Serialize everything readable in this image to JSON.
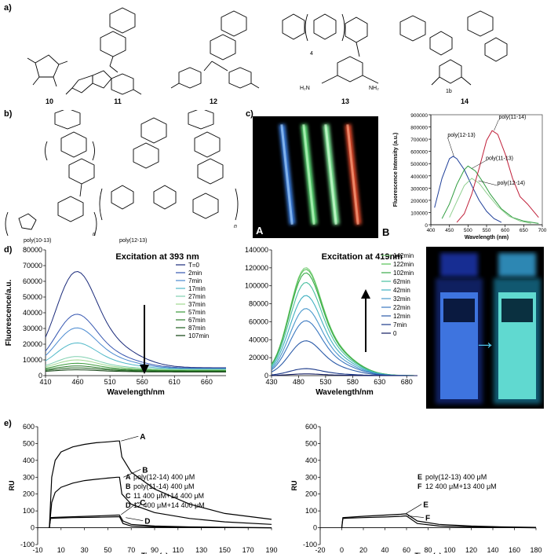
{
  "panels": {
    "a": "a)",
    "b": "b)",
    "c": "c)",
    "d": "d)",
    "e": "e)"
  },
  "compounds": [
    "10",
    "11",
    "12",
    "13",
    "14"
  ],
  "structure_text": {
    "n4": "4",
    "h2n_left": "H₂N",
    "nh2_right": "NH₂",
    "one_b": "1b"
  },
  "polymers": {
    "p1013": "poly(10-13)",
    "p1213": "poly(12-13)",
    "n": "n"
  },
  "photo_c": {
    "label_a": "A",
    "label_b": "B"
  },
  "photo_d": {
    "arrow": "→"
  },
  "chart_data": [
    {
      "id": "c-emission",
      "type": "line",
      "xlabel": "Wavelength (nm)",
      "ylabel": "Fluorescence Intensity (a.u.)",
      "xlim": [
        400,
        700
      ],
      "ylim": [
        0,
        900000
      ],
      "xticks": [
        400,
        450,
        500,
        550,
        600,
        650,
        700
      ],
      "yticks": [
        0,
        100000,
        200000,
        300000,
        400000,
        500000,
        600000,
        700000,
        800000,
        900000
      ],
      "series": [
        {
          "name": "poly(12-13)",
          "color": "#1f3f99",
          "x": [
            410,
            430,
            450,
            460,
            470,
            490,
            510,
            530,
            550,
            570,
            590
          ],
          "y": [
            140000,
            380000,
            540000,
            560000,
            540000,
            450000,
            320000,
            200000,
            110000,
            50000,
            20000
          ]
        },
        {
          "name": "poly(11-13)",
          "color": "#2e9c3e",
          "x": [
            430,
            450,
            470,
            490,
            500,
            520,
            540,
            560,
            590,
            620,
            650,
            690
          ],
          "y": [
            50000,
            170000,
            330000,
            450000,
            480000,
            440000,
            350000,
            250000,
            130000,
            60000,
            30000,
            10000
          ]
        },
        {
          "name": "poly(12-14)",
          "color": "#8fcf8f",
          "x": [
            450,
            470,
            490,
            510,
            530,
            550,
            580,
            610,
            640,
            670
          ],
          "y": [
            60000,
            190000,
            320000,
            380000,
            340000,
            260000,
            150000,
            70000,
            30000,
            10000
          ]
        },
        {
          "name": "poly(11-14)",
          "color": "#c0203a",
          "x": [
            470,
            490,
            510,
            530,
            550,
            565,
            580,
            600,
            620,
            640,
            660,
            690
          ],
          "y": [
            20000,
            90000,
            250000,
            460000,
            690000,
            770000,
            740000,
            580000,
            380000,
            230000,
            170000,
            60000
          ]
        }
      ]
    },
    {
      "id": "d-393",
      "type": "line",
      "title": "Excitation at 393 nm",
      "xlabel": "Wavelength/nm",
      "ylabel": "Fluorescence/a.u.",
      "xlim": [
        410,
        690
      ],
      "ylim": [
        0,
        80000
      ],
      "xticks": [
        410,
        460,
        510,
        560,
        610,
        660
      ],
      "yticks": [
        0,
        10000,
        20000,
        30000,
        40000,
        50000,
        60000,
        70000,
        80000
      ],
      "series": [
        {
          "name": "T=0",
          "color": "#1a2a7a",
          "peak": 66000
        },
        {
          "name": "2min",
          "color": "#3556b0",
          "peak": 37000
        },
        {
          "name": "7min",
          "color": "#4a8ad0",
          "peak": 28000
        },
        {
          "name": "17min",
          "color": "#4fb8c8",
          "peak": 18000
        },
        {
          "name": "27min",
          "color": "#7fd0b0",
          "peak": 9000
        },
        {
          "name": "37min",
          "color": "#a0d890",
          "peak": 7000
        },
        {
          "name": "57min",
          "color": "#3a9a3a",
          "peak": 5000
        },
        {
          "name": "67min",
          "color": "#2a7a2a",
          "peak": 3500
        },
        {
          "name": "87min",
          "color": "#1c5e1c",
          "peak": 2500
        },
        {
          "name": "107min",
          "color": "#0e3e0e",
          "peak": 1500
        }
      ]
    },
    {
      "id": "d-419",
      "type": "line",
      "title": "Excitation at 419nm",
      "xlabel": "Wavelength/nm",
      "ylabel": "",
      "xlim": [
        430,
        700
      ],
      "ylim": [
        0,
        140000
      ],
      "xticks": [
        430,
        480,
        530,
        580,
        630,
        680
      ],
      "yticks": [
        0,
        20000,
        40000,
        60000,
        80000,
        100000,
        120000,
        140000
      ],
      "series": [
        {
          "name": "142min",
          "color": "#7fd07f",
          "peak": 124000
        },
        {
          "name": "122min",
          "color": "#55c055",
          "peak": 122000
        },
        {
          "name": "102min",
          "color": "#3aaa4a",
          "peak": 118000
        },
        {
          "name": "62min",
          "color": "#4ac0a0",
          "peak": 107000
        },
        {
          "name": "42min",
          "color": "#40b0c0",
          "peak": 92000
        },
        {
          "name": "32min",
          "color": "#4a98cc",
          "peak": 77000
        },
        {
          "name": "22min",
          "color": "#3a78c0",
          "peak": 63000
        },
        {
          "name": "12min",
          "color": "#2a5aa8",
          "peak": 40000
        },
        {
          "name": "7min",
          "color": "#1c3a8a",
          "peak": 8000
        },
        {
          "name": "0",
          "color": "#101a60",
          "peak": 2000
        }
      ]
    },
    {
      "id": "e-left",
      "type": "line",
      "xlabel": "Time (s)",
      "ylabel": "RU",
      "xlim": [
        -10,
        190
      ],
      "ylim": [
        -100,
        600
      ],
      "xticks": [
        -10,
        10,
        30,
        50,
        70,
        90,
        110,
        130,
        150,
        170,
        190
      ],
      "yticks": [
        -100,
        0,
        100,
        200,
        300,
        400,
        500,
        600
      ],
      "series": [
        {
          "name": "A",
          "label": "poly(12-14) 400 μM",
          "x": [
            0,
            2,
            5,
            10,
            20,
            30,
            40,
            50,
            58,
            60,
            62,
            70,
            90,
            120,
            150,
            190
          ],
          "y": [
            0,
            300,
            400,
            450,
            480,
            495,
            505,
            510,
            515,
            515,
            420,
            330,
            230,
            140,
            85,
            50
          ]
        },
        {
          "name": "B",
          "label": "poly(11-14) 400 μM",
          "x": [
            0,
            2,
            5,
            10,
            20,
            30,
            40,
            50,
            58,
            60,
            62,
            70,
            90,
            120,
            150,
            190
          ],
          "y": [
            0,
            150,
            210,
            240,
            265,
            280,
            288,
            295,
            300,
            300,
            200,
            140,
            90,
            55,
            35,
            20
          ]
        },
        {
          "name": "C",
          "label": "11 400 μM+14 400 μM",
          "x": [
            0,
            1,
            5,
            20,
            40,
            58,
            60,
            63,
            70,
            90,
            120,
            190
          ],
          "y": [
            0,
            60,
            62,
            65,
            70,
            75,
            75,
            40,
            20,
            10,
            5,
            0
          ]
        },
        {
          "name": "D",
          "label": "12 400 μM+14 400 μM",
          "x": [
            0,
            1,
            5,
            20,
            40,
            58,
            60,
            63,
            70,
            90,
            120,
            190
          ],
          "y": [
            0,
            55,
            57,
            60,
            62,
            65,
            65,
            25,
            10,
            5,
            2,
            0
          ]
        }
      ]
    },
    {
      "id": "e-right",
      "type": "line",
      "xlabel": "Time (s)",
      "ylabel": "RU",
      "xlim": [
        -20,
        180
      ],
      "ylim": [
        -100,
        600
      ],
      "xticks": [
        -20,
        0,
        20,
        40,
        60,
        80,
        100,
        120,
        140,
        160,
        180
      ],
      "yticks": [
        -100,
        0,
        100,
        200,
        300,
        400,
        500,
        600
      ],
      "series": [
        {
          "name": "E",
          "label": "poly(12-13) 400 μM",
          "x": [
            0,
            1,
            5,
            20,
            40,
            55,
            58,
            60,
            70,
            90,
            120,
            150,
            180
          ],
          "y": [
            0,
            60,
            62,
            68,
            75,
            80,
            82,
            82,
            40,
            20,
            10,
            5,
            2
          ]
        },
        {
          "name": "F",
          "label": "12 400 μM+13 400 μM",
          "x": [
            0,
            1,
            5,
            20,
            40,
            55,
            58,
            60,
            70,
            90,
            120,
            150,
            180
          ],
          "y": [
            0,
            55,
            57,
            60,
            64,
            68,
            70,
            70,
            25,
            10,
            5,
            2,
            0
          ]
        }
      ]
    }
  ]
}
